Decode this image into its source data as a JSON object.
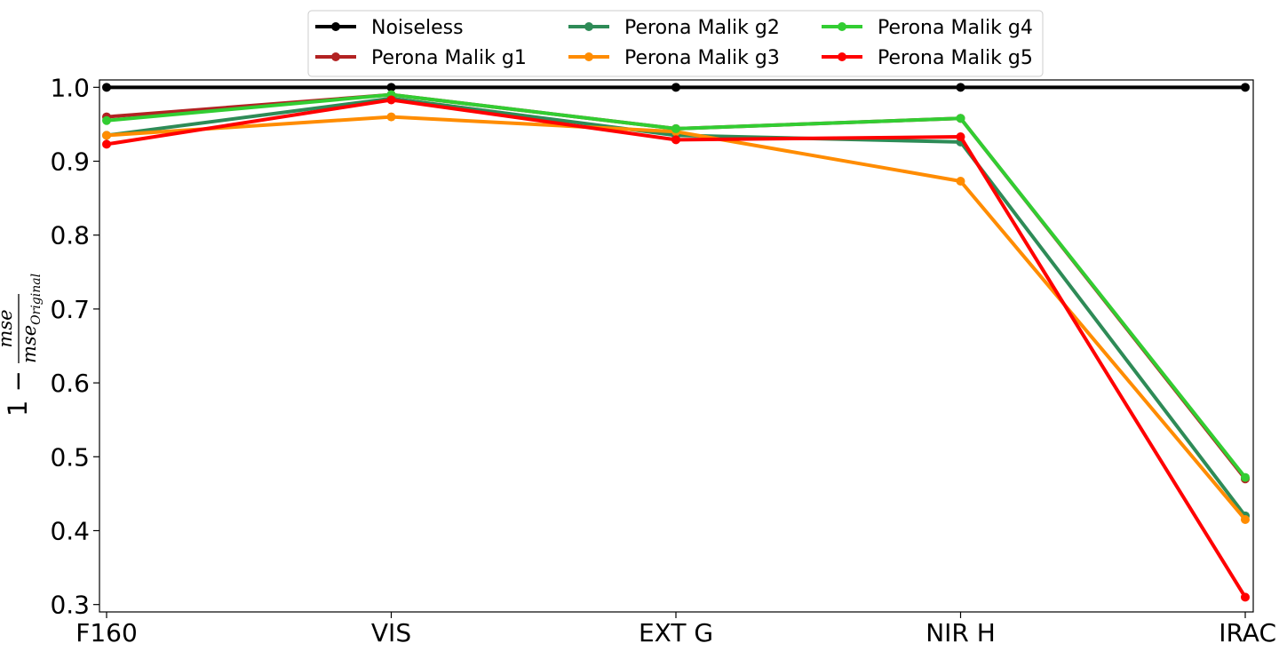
{
  "chart_data": {
    "type": "line",
    "title": "",
    "xlabel": "",
    "ylabel": "1 − mse / mse_Original",
    "ylabel_parts": {
      "prefix": "1 −",
      "numerator": "mse",
      "denominator": "mse",
      "subscript": "Original"
    },
    "categories": [
      "F160",
      "VIS",
      "EXT G",
      "NIR H",
      "IRAC"
    ],
    "ylim": [
      0.29,
      1.01
    ],
    "yticks": [
      {
        "value": 0.3,
        "label": "0.3"
      },
      {
        "value": 0.4,
        "label": "0.4"
      },
      {
        "value": 0.5,
        "label": "0.5"
      },
      {
        "value": 0.6,
        "label": "0.6"
      },
      {
        "value": 0.7,
        "label": "0.7"
      },
      {
        "value": 0.8,
        "label": "0.8"
      },
      {
        "value": 0.9,
        "label": "0.9"
      },
      {
        "value": 1.0,
        "label": "1.0"
      }
    ],
    "legend_position": "top-center",
    "series": [
      {
        "name": "Noiseless",
        "color": "#000000",
        "values": [
          1.0,
          1.0,
          1.0,
          1.0,
          1.0
        ]
      },
      {
        "name": "Perona Malik g1",
        "color": "#b22222",
        "values": [
          0.96,
          0.99,
          0.944,
          0.958,
          0.47
        ]
      },
      {
        "name": "Perona Malik g2",
        "color": "#2e8b57",
        "values": [
          0.935,
          0.985,
          0.935,
          0.926,
          0.42
        ]
      },
      {
        "name": "Perona Malik g3",
        "color": "#ff8c00",
        "values": [
          0.935,
          0.96,
          0.94,
          0.873,
          0.415
        ]
      },
      {
        "name": "Perona Malik g4",
        "color": "#32cd32",
        "values": [
          0.955,
          0.99,
          0.944,
          0.958,
          0.472
        ]
      },
      {
        "name": "Perona Malik g5",
        "color": "#ff0000",
        "values": [
          0.923,
          0.983,
          0.929,
          0.933,
          0.31
        ]
      }
    ]
  }
}
